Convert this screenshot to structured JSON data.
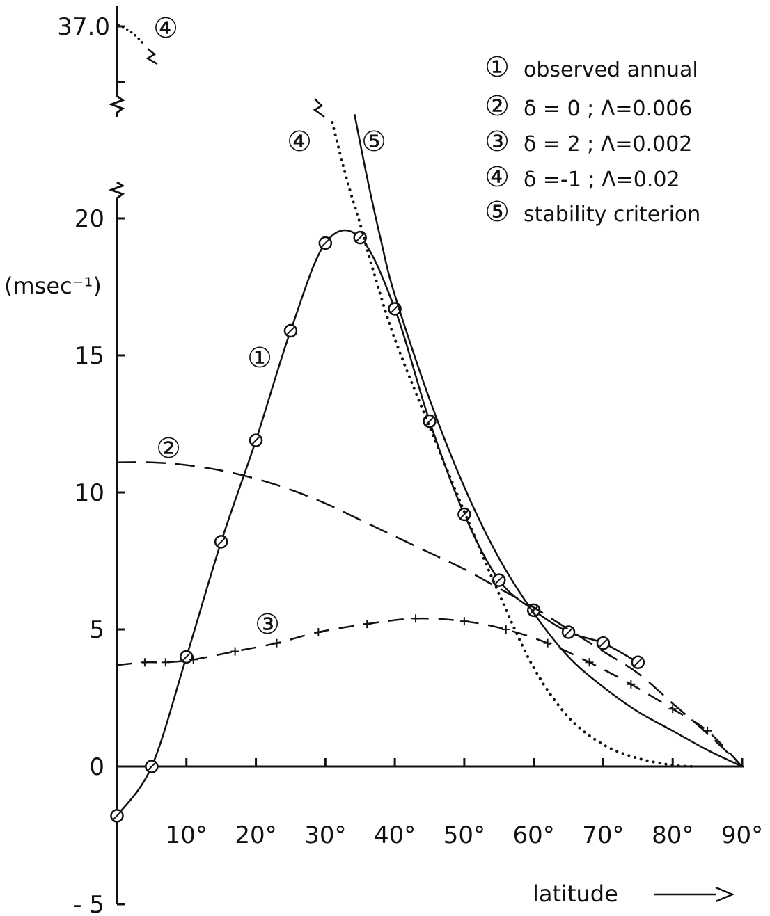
{
  "chart_data": {
    "type": "line",
    "xlabel": "latitude",
    "ylabel": "(msec⁻¹)",
    "xlim": [
      0,
      90
    ],
    "ylim": [
      -5,
      20
    ],
    "x_ticks": [
      10,
      20,
      30,
      40,
      50,
      60,
      70,
      80,
      90
    ],
    "x_tick_labels": [
      "10°",
      "20°",
      "30°",
      "40°",
      "50°",
      "60°",
      "70°",
      "80°",
      "90°"
    ],
    "y_ticks": [
      -5,
      0,
      5,
      10,
      15,
      20
    ],
    "y_tick_labels": [
      "- 5",
      "0",
      "5",
      "10",
      "15",
      "20"
    ],
    "broken_axis_value_label": "37.0",
    "grid": false,
    "legend_placement": "top-right",
    "legend": [
      {
        "marker": "①",
        "text": "observed annual"
      },
      {
        "marker": "②",
        "text": "δ = 0      ; Λ=0.006"
      },
      {
        "marker": "③",
        "text": "δ = 2      ; Λ=0.002"
      },
      {
        "marker": "④",
        "text": "δ =-1      ; Λ=0.02"
      },
      {
        "marker": "⑤",
        "text": "stability criterion"
      }
    ],
    "curve_labels": [
      {
        "series": 1,
        "text": "①"
      },
      {
        "series": 2,
        "text": "②"
      },
      {
        "series": 3,
        "text": "③"
      },
      {
        "series": 4,
        "text": "④"
      },
      {
        "series": 5,
        "text": "⑤"
      },
      {
        "series": 4,
        "text": "④"
      }
    ],
    "series": [
      {
        "id": 1,
        "style": "solid-circles",
        "x": [
          0,
          5,
          10,
          15,
          20,
          25,
          30,
          35,
          40,
          45,
          50,
          55,
          60,
          65,
          70,
          75
        ],
        "y": [
          -1.8,
          0,
          4.0,
          8.2,
          11.9,
          15.9,
          19.1,
          19.3,
          16.7,
          12.6,
          9.2,
          6.8,
          5.7,
          4.9,
          4.5,
          3.8
        ]
      },
      {
        "id": 2,
        "style": "dashed",
        "x": [
          0,
          5,
          10,
          15,
          20,
          25,
          30,
          35,
          40,
          45,
          50,
          55,
          60,
          65,
          70,
          75,
          80,
          85,
          90
        ],
        "y": [
          11.1,
          11.1,
          11.0,
          10.8,
          10.5,
          10.1,
          9.6,
          9.0,
          8.4,
          7.8,
          7.2,
          6.5,
          5.8,
          5.0,
          4.2,
          3.4,
          2.3,
          1.2,
          0
        ]
      },
      {
        "id": 3,
        "style": "dash-plus",
        "x": [
          0,
          4,
          7,
          11,
          17,
          23,
          29,
          36,
          43,
          50,
          56,
          62,
          68,
          74,
          80,
          85,
          90
        ],
        "y": [
          3.7,
          3.8,
          3.8,
          3.9,
          4.2,
          4.5,
          4.9,
          5.2,
          5.4,
          5.3,
          5.0,
          4.5,
          3.8,
          3.0,
          2.1,
          1.3,
          0
        ]
      },
      {
        "id": 4,
        "style": "dotted",
        "x": [
          31,
          33,
          35,
          37,
          40,
          45,
          50,
          55,
          60,
          65,
          70,
          75,
          80,
          83
        ],
        "y": [
          23.5,
          21.5,
          19.8,
          18.0,
          15.6,
          12.4,
          9.3,
          6.3,
          3.6,
          1.8,
          0.8,
          0.3,
          0.05,
          0
        ],
        "break_top_value": 37.0
      },
      {
        "id": 5,
        "style": "solid",
        "x": [
          34.2,
          36,
          38,
          40,
          45,
          50,
          55,
          60,
          65,
          70,
          75,
          80,
          85,
          90
        ],
        "y": [
          23.8,
          21.5,
          19.2,
          17.2,
          13.4,
          10.2,
          7.6,
          5.6,
          4.0,
          2.9,
          2.0,
          1.3,
          0.6,
          0
        ]
      }
    ]
  }
}
